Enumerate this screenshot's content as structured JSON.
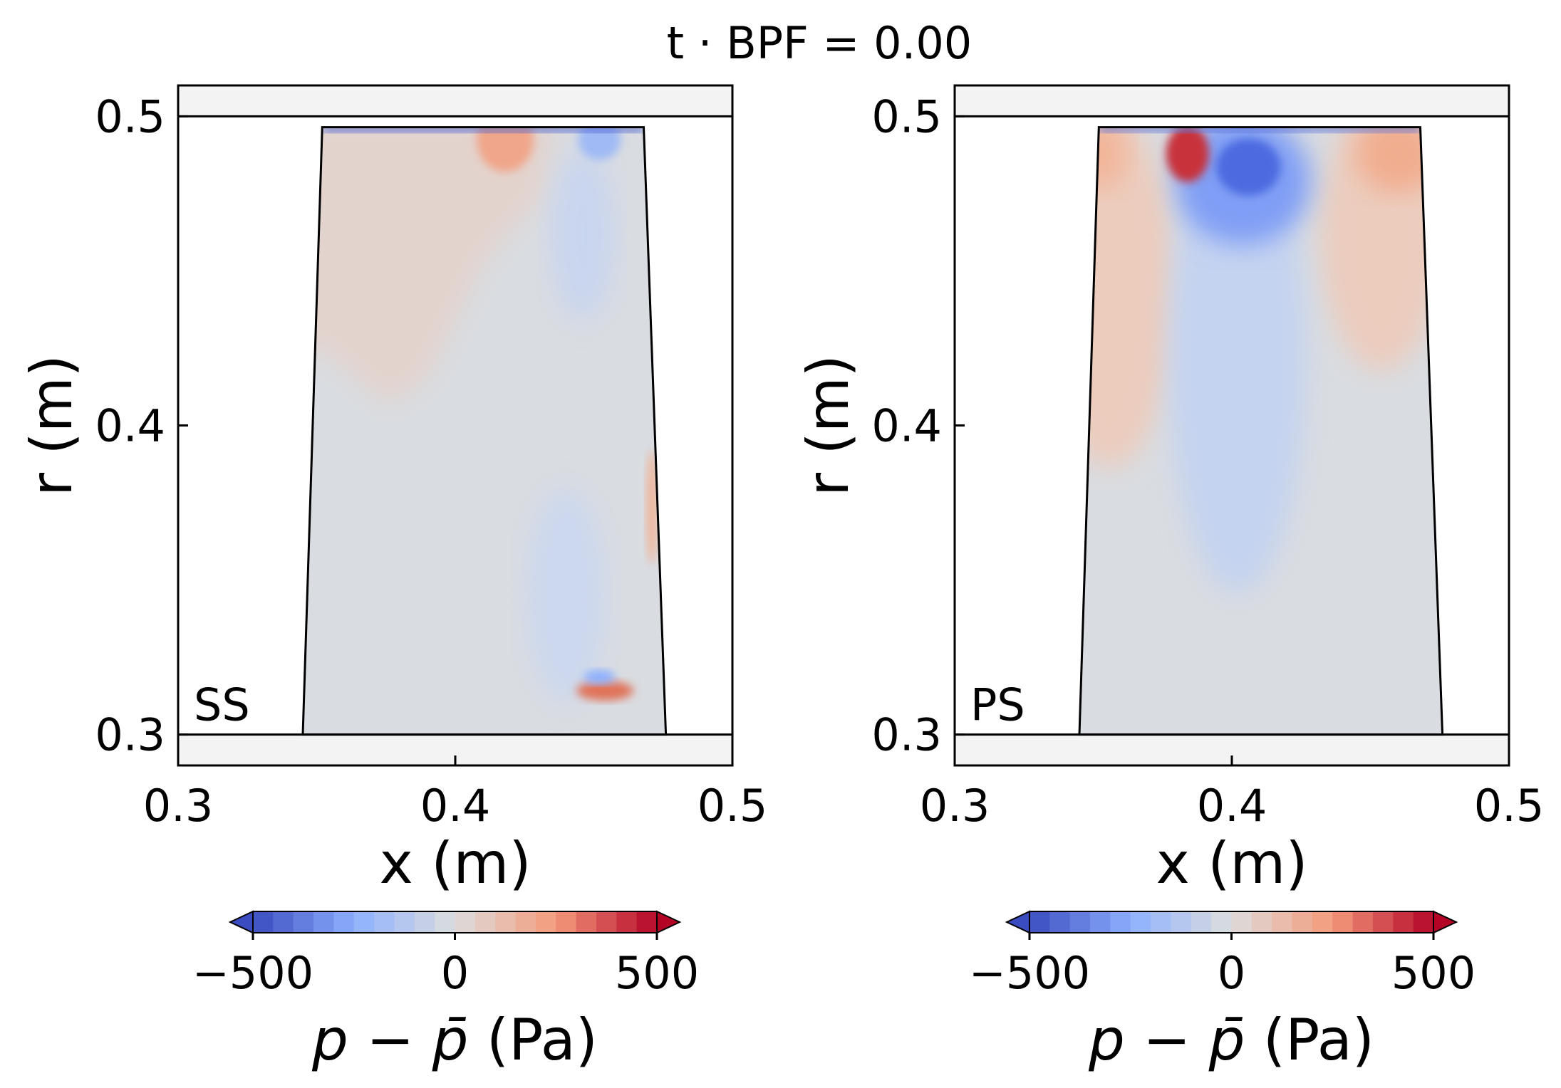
{
  "figure": {
    "title": "t · BPF = 0.00"
  },
  "colors": {
    "casing": "#f3f3f3",
    "neutral": "#d9dce1",
    "blue_strong": "#3b4cc0",
    "blue_mid": "#8db0fe",
    "blue_light": "#c5d4f0",
    "red_strong": "#b40426",
    "red_mid": "#f49a7b",
    "red_light": "#ecd3c5"
  },
  "chart_data": [
    {
      "type": "heatmap",
      "panel_label": "SS",
      "xlabel": "x (m)",
      "ylabel": "r (m)",
      "xlim": [
        0.3,
        0.5
      ],
      "ylim": [
        0.29,
        0.51
      ],
      "xticks": [
        "0.3",
        "0.4",
        "0.5"
      ],
      "yticks": [
        "0.3",
        "0.4",
        "0.5"
      ],
      "hub_r": 0.3,
      "casing_r": 0.5,
      "blade_outline": [
        [
          0.345,
          0.3
        ],
        [
          0.352,
          0.4965
        ],
        [
          0.468,
          0.4965
        ],
        [
          0.476,
          0.3
        ]
      ],
      "colorbar": {
        "min": -500,
        "max": 500,
        "ticks": [
          "−500",
          "0",
          "500"
        ],
        "label_main": "p − p̄",
        "label_unit": " (Pa)",
        "extend": "both"
      }
    },
    {
      "type": "heatmap",
      "panel_label": "PS",
      "xlabel": "x (m)",
      "ylabel": "r (m)",
      "xlim": [
        0.3,
        0.5
      ],
      "ylim": [
        0.29,
        0.51
      ],
      "xticks": [
        "0.3",
        "0.4",
        "0.5"
      ],
      "yticks": [
        "0.3",
        "0.4",
        "0.5"
      ],
      "hub_r": 0.3,
      "casing_r": 0.5,
      "blade_outline": [
        [
          0.345,
          0.3
        ],
        [
          0.352,
          0.4965
        ],
        [
          0.468,
          0.4965
        ],
        [
          0.476,
          0.3
        ]
      ],
      "colorbar": {
        "min": -500,
        "max": 500,
        "ticks": [
          "−500",
          "0",
          "500"
        ],
        "label_main": "p − p̄",
        "label_unit": " (Pa)",
        "extend": "both"
      }
    }
  ]
}
